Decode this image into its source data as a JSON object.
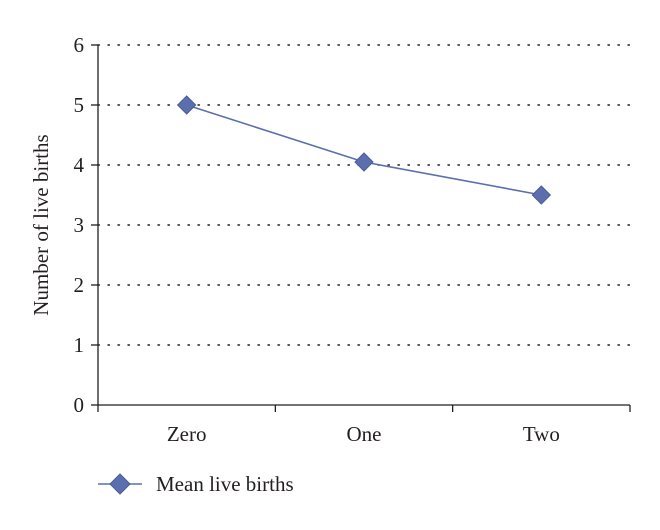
{
  "chart_data": {
    "type": "line",
    "categories": [
      "Zero",
      "One",
      "Two"
    ],
    "series": [
      {
        "name": "Mean live births",
        "values": [
          5.0,
          4.05,
          3.5
        ],
        "color": "#5b6fae",
        "marker": "diamond"
      }
    ],
    "ylabel": "Number of live births",
    "xlabel": "",
    "ylim": [
      0,
      6
    ],
    "yticks": [
      "0",
      "1",
      "2",
      "3",
      "4",
      "5",
      "6"
    ],
    "grid": "horizontal-dotted",
    "legend_position": "bottom-left"
  }
}
